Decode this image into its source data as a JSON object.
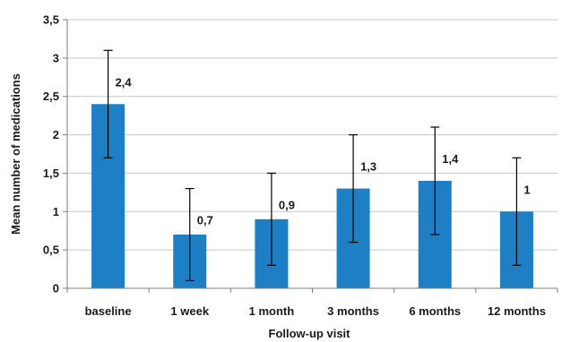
{
  "chart_data": {
    "type": "bar",
    "title": "",
    "xlabel": "Follow-up visit",
    "ylabel": "Mean number of medications",
    "categories": [
      "baseline",
      "1 week",
      "1 month",
      "3 months",
      "6 months",
      "12 months"
    ],
    "values": [
      2.4,
      0.7,
      0.9,
      1.3,
      1.4,
      1
    ],
    "value_labels": [
      "2,4",
      "0,7",
      "0,9",
      "1,3",
      "1,4",
      "1"
    ],
    "error_bars": [
      {
        "low": 1.7,
        "high": 3.1
      },
      {
        "low": 0.1,
        "high": 1.3
      },
      {
        "low": 0.3,
        "high": 1.5
      },
      {
        "low": 0.6,
        "high": 2.0
      },
      {
        "low": 0.7,
        "high": 2.1
      },
      {
        "low": 0.3,
        "high": 1.7
      }
    ],
    "ylim": [
      0,
      3.5
    ],
    "yticks": [
      0,
      0.5,
      1,
      1.5,
      2,
      2.5,
      3,
      3.5
    ],
    "ytick_labels": [
      "0",
      "0,5",
      "1",
      "1,5",
      "2",
      "2,5",
      "3",
      "3,5"
    ],
    "grid": true,
    "legend": "none",
    "colors": {
      "bar": "#1f7fc4",
      "grid": "#c8c8c8",
      "axis": "#7f7f7f",
      "error_bar": "#000000"
    }
  }
}
